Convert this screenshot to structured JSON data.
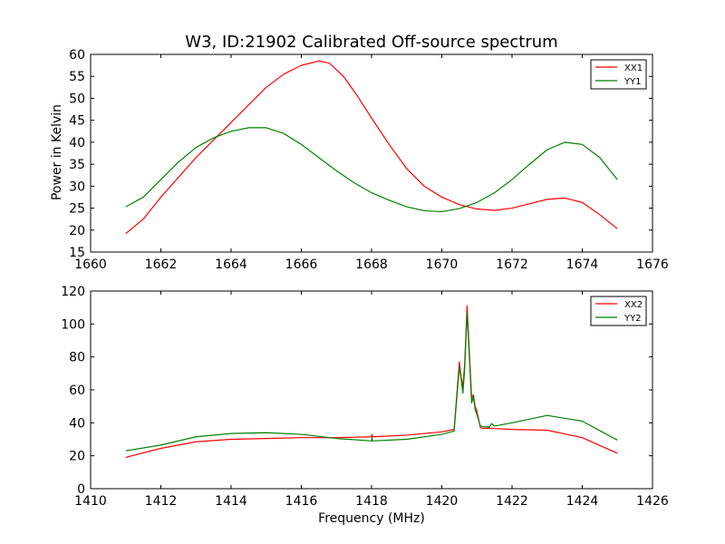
{
  "chart_data": [
    {
      "type": "line",
      "title": "W3, ID:21902 Calibrated Off-source spectrum",
      "xlabel": "",
      "ylabel": "Power in Kelvin",
      "xlim": [
        1660,
        1676
      ],
      "ylim": [
        15,
        60
      ],
      "xticks": [
        1660,
        1662,
        1664,
        1666,
        1668,
        1670,
        1672,
        1674,
        1676
      ],
      "yticks": [
        15,
        20,
        25,
        30,
        35,
        40,
        45,
        50,
        55,
        60
      ],
      "grid": false,
      "legend": "top-right",
      "series": [
        {
          "name": "XX1",
          "color": "#ff0000",
          "x": [
            1661.0,
            1661.5,
            1662.0,
            1662.5,
            1663.0,
            1663.5,
            1664.0,
            1664.5,
            1665.0,
            1665.5,
            1666.0,
            1666.5,
            1666.8,
            1667.2,
            1667.6,
            1668.0,
            1668.5,
            1669.0,
            1669.5,
            1670.0,
            1670.5,
            1671.0,
            1671.5,
            1672.0,
            1672.5,
            1673.0,
            1673.5,
            1674.0,
            1674.5,
            1675.0
          ],
          "y": [
            19.2,
            22.5,
            27.5,
            32.0,
            36.5,
            40.5,
            44.5,
            48.5,
            52.5,
            55.5,
            57.5,
            58.5,
            58.0,
            55.0,
            50.5,
            45.5,
            39.5,
            34.0,
            30.0,
            27.5,
            25.8,
            24.8,
            24.5,
            25.0,
            26.0,
            27.0,
            27.3,
            26.3,
            23.5,
            20.3
          ]
        },
        {
          "name": "YY1",
          "color": "#008000",
          "x": [
            1661.0,
            1661.5,
            1662.0,
            1662.5,
            1663.0,
            1663.5,
            1664.0,
            1664.5,
            1665.0,
            1665.5,
            1666.0,
            1666.5,
            1667.0,
            1667.5,
            1668.0,
            1668.5,
            1669.0,
            1669.5,
            1670.0,
            1670.5,
            1671.0,
            1671.5,
            1672.0,
            1672.5,
            1673.0,
            1673.5,
            1674.0,
            1674.5,
            1675.0
          ],
          "y": [
            25.3,
            27.5,
            31.5,
            35.5,
            38.8,
            41.0,
            42.5,
            43.3,
            43.3,
            42.0,
            39.5,
            36.5,
            33.5,
            30.8,
            28.5,
            26.8,
            25.3,
            24.4,
            24.2,
            24.9,
            26.3,
            28.5,
            31.5,
            35.0,
            38.3,
            40.0,
            39.5,
            36.5,
            31.5
          ]
        }
      ]
    },
    {
      "type": "line",
      "title": "",
      "xlabel": "Frequency (MHz)",
      "ylabel": "",
      "xlim": [
        1410,
        1426
      ],
      "ylim": [
        0,
        120
      ],
      "xticks": [
        1410,
        1412,
        1414,
        1416,
        1418,
        1420,
        1422,
        1424,
        1426
      ],
      "yticks": [
        0,
        20,
        40,
        60,
        80,
        100,
        120
      ],
      "grid": false,
      "legend": "top-right",
      "series": [
        {
          "name": "XX2",
          "color": "#ff0000",
          "x": [
            1411.0,
            1412.0,
            1413.0,
            1414.0,
            1415.0,
            1416.0,
            1417.0,
            1418.0,
            1418.01,
            1418.03,
            1419.0,
            1420.0,
            1420.35,
            1420.5,
            1420.55,
            1420.6,
            1420.65,
            1420.72,
            1420.78,
            1420.85,
            1420.9,
            1420.95,
            1421.0,
            1421.1,
            1421.2,
            1421.35,
            1421.5,
            1422.0,
            1423.0,
            1424.0,
            1425.0
          ],
          "y": [
            19.0,
            24.5,
            28.5,
            30.0,
            30.5,
            31.0,
            31.0,
            31.5,
            33.0,
            31.5,
            32.5,
            34.5,
            36.0,
            77.0,
            68.0,
            62.0,
            75.0,
            111.0,
            85.0,
            55.0,
            57.0,
            50.0,
            47.0,
            37.0,
            36.5,
            36.8,
            36.5,
            36.0,
            35.5,
            31.0,
            21.5
          ]
        },
        {
          "name": "YY2",
          "color": "#008000",
          "x": [
            1411.0,
            1412.0,
            1413.0,
            1414.0,
            1415.0,
            1416.0,
            1417.0,
            1418.0,
            1418.01,
            1418.03,
            1419.0,
            1420.0,
            1420.35,
            1420.5,
            1420.55,
            1420.6,
            1420.65,
            1420.72,
            1420.78,
            1420.85,
            1420.9,
            1420.95,
            1421.0,
            1421.1,
            1421.2,
            1421.35,
            1421.42,
            1421.5,
            1422.0,
            1423.0,
            1424.0,
            1425.0
          ],
          "y": [
            23.0,
            26.5,
            31.5,
            33.5,
            34.0,
            33.0,
            30.5,
            29.0,
            31.0,
            29.0,
            30.0,
            33.0,
            35.0,
            74.0,
            67.0,
            58.0,
            72.0,
            107.0,
            82.0,
            52.0,
            56.0,
            48.0,
            45.0,
            38.0,
            37.5,
            37.5,
            39.5,
            38.0,
            40.0,
            44.5,
            41.0,
            29.5
          ]
        }
      ]
    }
  ]
}
